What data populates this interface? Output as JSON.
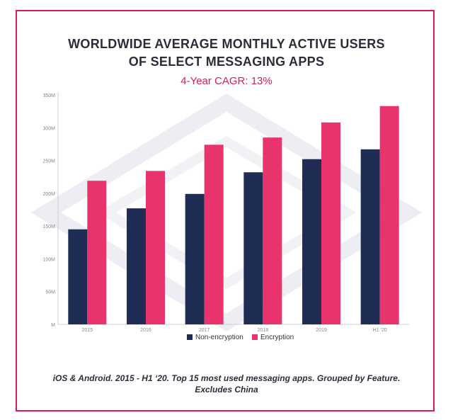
{
  "chart_data": {
    "type": "bar",
    "title_line1": "WORLDWIDE AVERAGE MONTHLY ACTIVE USERS",
    "title_line2": "OF SELECT MESSAGING APPS",
    "subtitle": "4-Year CAGR: 13%",
    "categories": [
      "2015",
      "2016",
      "2017",
      "2018",
      "2019",
      "H1 '20"
    ],
    "series": [
      {
        "name": "Non-encryption",
        "values": [
          145,
          177,
          199,
          232,
          252,
          267
        ]
      },
      {
        "name": "Encryption",
        "values": [
          219,
          234,
          274,
          285,
          308,
          333
        ]
      }
    ],
    "y_ticks": [
      {
        "value": 0,
        "label": "M"
      },
      {
        "value": 50,
        "label": "50M"
      },
      {
        "value": 100,
        "label": "100M"
      },
      {
        "value": 150,
        "label": "150M"
      },
      {
        "value": 200,
        "label": "200M"
      },
      {
        "value": 250,
        "label": "250M"
      },
      {
        "value": 300,
        "label": "300M"
      },
      {
        "value": 350,
        "label": "350M"
      }
    ],
    "ylim": [
      0,
      350
    ],
    "grid": false,
    "legend_position": "bottom",
    "colors": {
      "Non-encryption": "#1f2d55",
      "Encryption": "#e8336d"
    }
  },
  "footnote_line1": "iOS & Android. 2015 - H1 ‘20. Top 15 most used messaging apps. Grouped by Feature.",
  "footnote_line2": "Excludes China",
  "colors": {
    "frame": "#d81b60",
    "title": "#2d2d3a",
    "subtitle": "#d81b60",
    "axis_text": "#888888"
  }
}
